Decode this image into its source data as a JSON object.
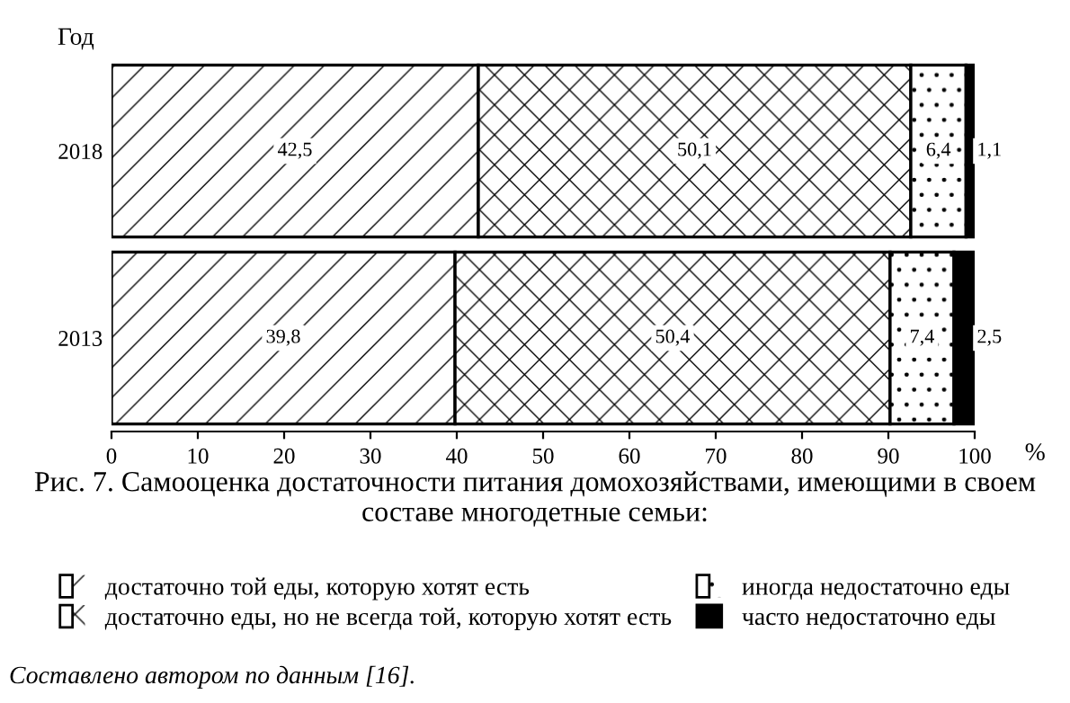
{
  "chart_data": {
    "type": "bar",
    "orientation": "horizontal",
    "stacked": true,
    "title": "Рис. 7. Самооценка достаточности питания домохозяйствами, имеющими в своем составе многодетные семьи:",
    "ylabel": "Год",
    "xlabel": "%",
    "categories": [
      "2018",
      "2013"
    ],
    "series": [
      {
        "name": "достаточно той еды, которую хотят есть",
        "color": "#ffffff",
        "values": [
          42.5,
          39.8
        ],
        "value_labels": [
          "42,5",
          "39,8"
        ]
      },
      {
        "name": "достаточно еды, но не всегда той, которую хотят есть",
        "color": "#ffffff",
        "values": [
          50.1,
          50.4
        ],
        "value_labels": [
          "50,1",
          "50,4"
        ]
      },
      {
        "name": "иногда недостаточно еды",
        "color": "#ffffff",
        "values": [
          6.4,
          7.4
        ],
        "value_labels": [
          "6,4",
          "7,4"
        ]
      },
      {
        "name": "часто недостаточно еды",
        "color": "#000000",
        "values": [
          1.1,
          2.5
        ],
        "value_labels": [
          "1,1",
          "2,5"
        ]
      }
    ],
    "xlim": [
      0,
      100
    ],
    "xticks": [
      0,
      10,
      20,
      30,
      40,
      50,
      60,
      70,
      80,
      90,
      100
    ],
    "grid": false,
    "legend": "bottom",
    "annotations": [
      "Составлено автором по данным [16]."
    ]
  }
}
